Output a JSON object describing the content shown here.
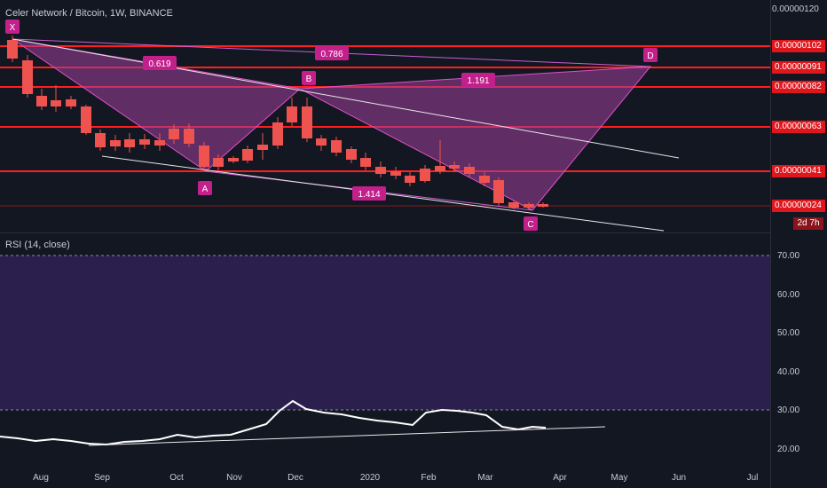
{
  "header": {
    "title": "Celer Network / Bitcoin, 1W, BINANCE"
  },
  "price_axis": {
    "labels": [
      "0.00000120",
      "0.00000102",
      "0.00000091",
      "0.00000082",
      "0.00000063",
      "0.00000041",
      "0.00000024"
    ],
    "countdown": "2d 7h"
  },
  "pattern": {
    "points": [
      "X",
      "A",
      "B",
      "C",
      "D"
    ],
    "ratios": [
      "0.619",
      "0.786",
      "1.191",
      "1.414"
    ]
  },
  "rsi": {
    "title": "RSI (14, close)",
    "levels": [
      "70.00",
      "60.00",
      "50.00",
      "40.00",
      "30.00",
      "20.00"
    ]
  },
  "time_axis": {
    "labels": [
      "Aug",
      "Sep",
      "Oct",
      "Nov",
      "Dec",
      "2020",
      "Feb",
      "Mar",
      "Apr",
      "May",
      "Jun",
      "Jul"
    ]
  },
  "colors": {
    "background": "#131722",
    "bull": "#26a69a",
    "bear": "#ef5350",
    "pattern_fill": "#a0409a",
    "pattern_line": "#e24fc7",
    "level_line": "#ff1e1e",
    "rsi_band": "#2a1f4d",
    "rsi_line": "#ffffff"
  }
}
